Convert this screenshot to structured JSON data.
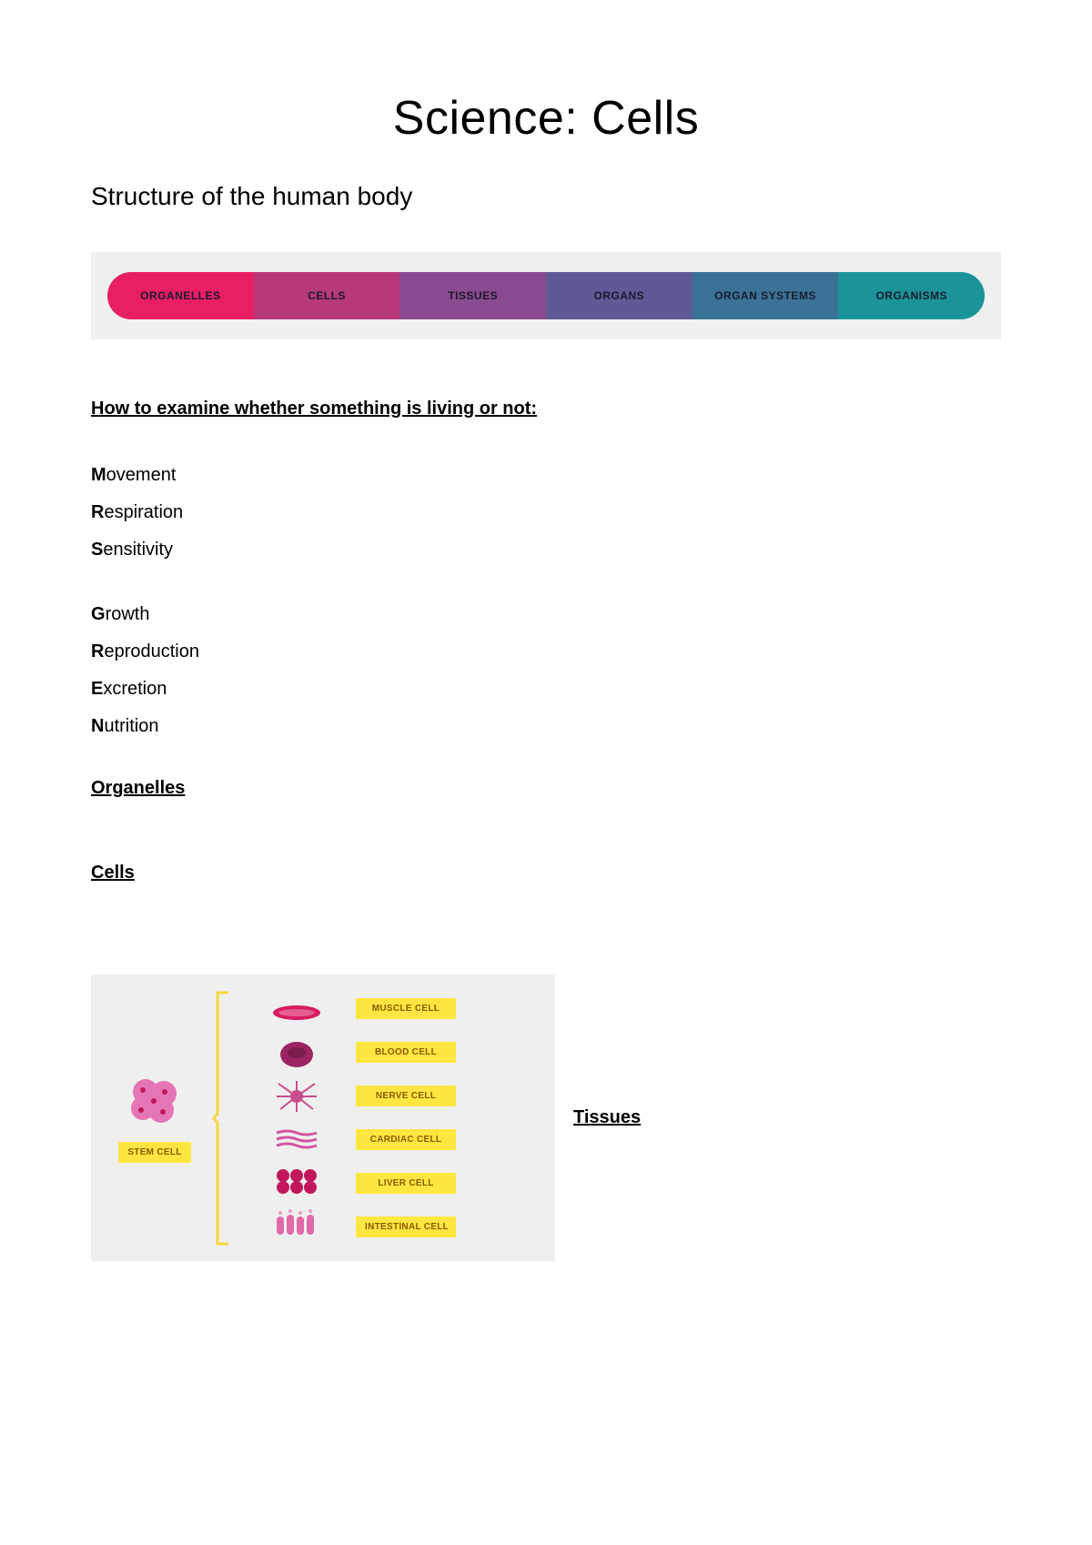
{
  "title": "Science: Cells",
  "subtitle": "Structure of the human body",
  "hierarchy": {
    "background_color": "#f0f0f0",
    "items": [
      {
        "label": "ORGANELLES",
        "color": "#e91e63"
      },
      {
        "label": "CELLS",
        "color": "#b73979"
      },
      {
        "label": "TISSUES",
        "color": "#8a4a8f"
      },
      {
        "label": "ORGANS",
        "color": "#5e5a96"
      },
      {
        "label": "ORGAN SYSTEMS",
        "color": "#3a7396"
      },
      {
        "label": "ORGANISMS",
        "color": "#1a9499"
      }
    ],
    "text_color": "#1a1a2e",
    "fontsize": 12
  },
  "examine_heading": "How to examine whether something is living or not:",
  "mrs_green": {
    "group1": [
      {
        "first": "M",
        "rest": "ovement"
      },
      {
        "first": "R",
        "rest": "espiration"
      },
      {
        "first": "S",
        "rest": "ensitivity"
      }
    ],
    "group2": [
      {
        "first": "G",
        "rest": "rowth"
      },
      {
        "first": "R",
        "rest": "eproduction"
      },
      {
        "first": "E",
        "rest": "xcretion"
      },
      {
        "first": "N",
        "rest": "utrition"
      }
    ],
    "fontsize": 20
  },
  "headings": {
    "organelles": "Organelles",
    "cells": "Cells",
    "tissues": "Tissues"
  },
  "cells_diagram": {
    "background_color": "#efefef",
    "stem_label": "STEM CELL",
    "stem_color": "#e576b5",
    "bracket_color": "#f5d740",
    "label_bg": "#ffe640",
    "label_text_color": "#8a5a00",
    "cell_types": [
      {
        "name": "MUSCLE CELL",
        "icon_color": "#d81b60"
      },
      {
        "name": "BLOOD CELL",
        "icon_color": "#9c2463"
      },
      {
        "name": "NERVE CELL",
        "icon_color": "#c94f8c"
      },
      {
        "name": "CARDIAC CELL",
        "icon_color": "#d456a0"
      },
      {
        "name": "LIVER CELL",
        "icon_color": "#c2185b"
      },
      {
        "name": "INTESTINAL CELL",
        "icon_color": "#e06aa8"
      }
    ]
  }
}
